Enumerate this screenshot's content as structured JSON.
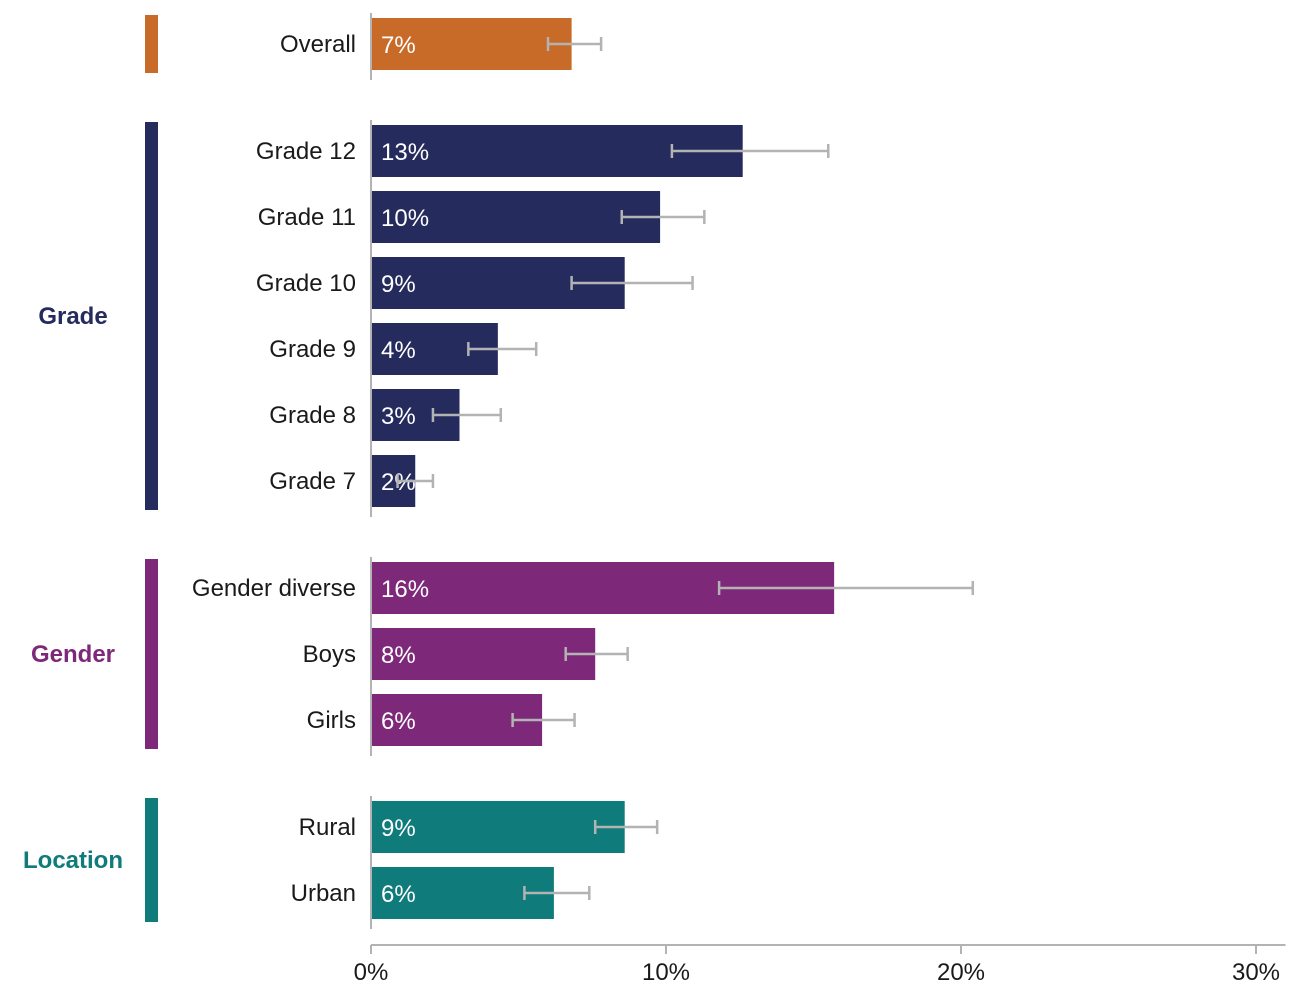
{
  "colors": {
    "overall": "#c86b28",
    "grade": "#252b5c",
    "gender": "#7d2878",
    "location": "#0f7b7b",
    "errorbar": "#b3b3b3",
    "axis": "#b3b3b3"
  },
  "chart_data": {
    "type": "bar",
    "orientation": "horizontal",
    "title": "",
    "xlabel": "",
    "ylabel": "",
    "xlim": [
      0,
      31
    ],
    "xticks": [
      {
        "value": 0,
        "label": "0%"
      },
      {
        "value": 10,
        "label": "10%"
      },
      {
        "value": 20,
        "label": "20%"
      },
      {
        "value": 30,
        "label": "30%"
      }
    ],
    "groups": [
      {
        "name": "",
        "color_key": "overall",
        "items": [
          {
            "label": "Overall",
            "value": 6.8,
            "value_label": "7%",
            "ci_low": 6.0,
            "ci_high": 7.8
          }
        ]
      },
      {
        "name": "Grade",
        "color_key": "grade",
        "items": [
          {
            "label": "Grade 12",
            "value": 12.6,
            "value_label": "13%",
            "ci_low": 10.2,
            "ci_high": 15.5
          },
          {
            "label": "Grade 11",
            "value": 9.8,
            "value_label": "10%",
            "ci_low": 8.5,
            "ci_high": 11.3
          },
          {
            "label": "Grade 10",
            "value": 8.6,
            "value_label": "9%",
            "ci_low": 6.8,
            "ci_high": 10.9
          },
          {
            "label": "Grade 9",
            "value": 4.3,
            "value_label": "4%",
            "ci_low": 3.3,
            "ci_high": 5.6
          },
          {
            "label": "Grade 8",
            "value": 3.0,
            "value_label": "3%",
            "ci_low": 2.1,
            "ci_high": 4.4
          },
          {
            "label": "Grade 7",
            "value": 1.5,
            "value_label": "2%",
            "ci_low": 0.9,
            "ci_high": 2.1
          }
        ]
      },
      {
        "name": "Gender",
        "color_key": "gender",
        "items": [
          {
            "label": "Gender diverse",
            "value": 15.7,
            "value_label": "16%",
            "ci_low": 11.8,
            "ci_high": 20.4
          },
          {
            "label": "Boys",
            "value": 7.6,
            "value_label": "8%",
            "ci_low": 6.6,
            "ci_high": 8.7
          },
          {
            "label": "Girls",
            "value": 5.8,
            "value_label": "6%",
            "ci_low": 4.8,
            "ci_high": 6.9
          }
        ]
      },
      {
        "name": "Location",
        "color_key": "location",
        "items": [
          {
            "label": "Rural",
            "value": 8.6,
            "value_label": "9%",
            "ci_low": 7.6,
            "ci_high": 9.7
          },
          {
            "label": "Urban",
            "value": 6.2,
            "value_label": "6%",
            "ci_low": 5.2,
            "ci_high": 7.4
          }
        ]
      }
    ]
  }
}
